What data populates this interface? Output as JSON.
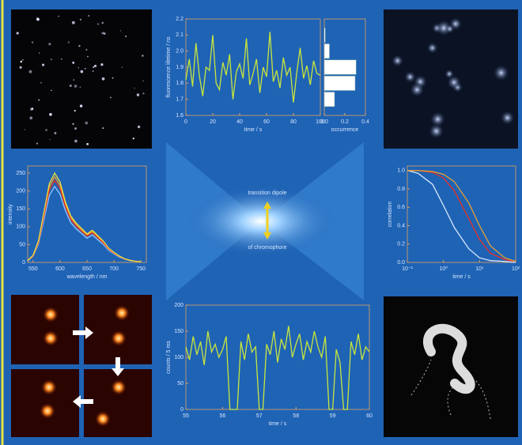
{
  "chart_data": [
    {
      "type": "line",
      "x_label": "time / s",
      "y_label": "fluorescence lifetime / ns",
      "x": [
        0,
        2.5,
        5,
        7.5,
        10,
        12.5,
        15,
        17.5,
        20,
        22.5,
        25,
        27.5,
        30,
        32.5,
        35,
        37.5,
        40,
        42.5,
        45,
        47.5,
        50,
        52.5,
        55,
        57.5,
        60,
        62.5,
        65,
        67.5,
        70,
        72.5,
        75,
        77.5,
        80,
        82.5,
        85,
        87.5,
        90,
        92.5,
        95,
        97.5,
        100
      ],
      "series": [
        {
          "color": "#c8e63c",
          "values": [
            1.82,
            1.95,
            1.78,
            2.05,
            1.85,
            1.72,
            1.9,
            1.88,
            2.1,
            1.8,
            1.76,
            1.93,
            1.85,
            1.98,
            1.7,
            1.87,
            1.92,
            1.83,
            2.08,
            1.79,
            1.86,
            1.95,
            1.74,
            1.9,
            1.84,
            2.12,
            1.81,
            1.88,
            1.77,
            1.96,
            1.85,
            1.9,
            1.68,
            1.87,
            2.02,
            1.83,
            1.91,
            1.79,
            1.94,
            1.86,
            1.85
          ]
        }
      ],
      "xlim": [
        0,
        100
      ],
      "xticks": [
        0,
        20,
        40,
        60,
        80,
        100
      ],
      "ylim": [
        1.6,
        2.2
      ],
      "yticks": [
        1.6,
        1.7,
        1.8,
        1.9,
        {
          "value": 2,
          "label": "2.0"
        },
        2.1,
        2.2
      ]
    },
    {
      "type": "histogram",
      "orientation": "horizontal",
      "x_label": "occurrence",
      "color": "#ffffff",
      "bins": [
        1.65,
        1.75,
        1.85,
        1.95,
        2.05,
        2.15
      ],
      "values": [
        0.1,
        0.3,
        0.31,
        0.05,
        0.01
      ],
      "xlim": [
        0,
        0.4
      ],
      "xticks": [
        {
          "value": 0,
          "label": "0.0"
        },
        0.2,
        0.4
      ],
      "ylim": [
        1.6,
        2.2
      ]
    },
    {
      "type": "line",
      "x_label": "wavelength / nm",
      "y_label": "intensity",
      "x": [
        540,
        550,
        560,
        570,
        580,
        590,
        600,
        610,
        620,
        630,
        640,
        650,
        660,
        670,
        680,
        690,
        700,
        710,
        720,
        730,
        740,
        750
      ],
      "series": [
        {
          "color": "#8fc8ff",
          "values": [
            4,
            17,
            51,
            119,
            187,
            213,
            191,
            145,
            111,
            94,
            81,
            68,
            77,
            64,
            51,
            34,
            24,
            15,
            9,
            5,
            3,
            2
          ]
        },
        {
          "color": "#e8a030",
          "values": [
            5,
            19,
            58,
            134,
            211,
            240,
            216,
            163,
            125,
            106,
            91,
            77,
            86,
            72,
            58,
            38,
            27,
            17,
            10,
            6,
            3,
            2
          ]
        },
        {
          "color": "#e83020",
          "values": [
            5,
            18,
            55,
            129,
            202,
            230,
            207,
            156,
            120,
            101,
            87,
            74,
            83,
            69,
            55,
            37,
            26,
            17,
            9,
            6,
            3,
            2
          ]
        },
        {
          "color": "#e8e040",
          "values": [
            5,
            20,
            60,
            140,
            220,
            250,
            225,
            170,
            130,
            110,
            95,
            80,
            90,
            75,
            60,
            40,
            28,
            18,
            10,
            6,
            3,
            2
          ]
        }
      ],
      "xlim": [
        540,
        760
      ],
      "xticks": [
        550,
        600,
        650,
        700,
        750
      ],
      "ylim": [
        0,
        270
      ],
      "yticks": [
        0,
        50,
        100,
        150,
        200,
        250
      ]
    },
    {
      "type": "line",
      "x_label": "time / s",
      "y_label": "correlation",
      "xscale": "log",
      "x": [
        0.1,
        0.2,
        0.5,
        1,
        2,
        5,
        10,
        20,
        50,
        100
      ],
      "series": [
        {
          "color": "#d8e8ff",
          "values": [
            1,
            0.97,
            0.85,
            0.62,
            0.38,
            0.15,
            0.05,
            0.02,
            0.01,
            0
          ]
        },
        {
          "color": "#e83020",
          "values": [
            1,
            1,
            0.98,
            0.92,
            0.78,
            0.48,
            0.25,
            0.1,
            0.03,
            0.01
          ]
        },
        {
          "color": "#e8a030",
          "values": [
            1,
            1,
            0.99,
            0.96,
            0.88,
            0.65,
            0.4,
            0.18,
            0.05,
            0.01
          ]
        }
      ],
      "xlim": [
        0.1,
        100
      ],
      "xticks": [
        {
          "value": 0.1,
          "label": "10⁻¹"
        },
        {
          "value": 1,
          "label": "10⁰"
        },
        {
          "value": 10,
          "label": "10¹"
        },
        {
          "value": 100,
          "label": "10²"
        }
      ],
      "ylim": [
        0,
        1.05
      ],
      "yticks": [
        {
          "value": 0,
          "label": "0.0"
        },
        0.2,
        0.4,
        0.6,
        0.8,
        {
          "value": 1,
          "label": "1.0"
        }
      ]
    },
    {
      "type": "line",
      "x_label": "time / s",
      "y_label": "counts / 5 ms",
      "x": [
        55,
        55.1,
        55.2,
        55.3,
        55.4,
        55.5,
        55.6,
        55.7,
        55.8,
        55.9,
        56,
        56.1,
        56.2,
        56.3,
        56.4,
        56.5,
        56.6,
        56.7,
        56.8,
        56.9,
        57,
        57.1,
        57.2,
        57.3,
        57.4,
        57.5,
        57.6,
        57.7,
        57.8,
        57.9,
        58,
        58.1,
        58.2,
        58.3,
        58.4,
        58.5,
        58.6,
        58.7,
        58.8,
        58.9,
        59,
        59.1,
        59.2,
        59.3,
        59.4,
        59.5,
        59.6,
        59.7,
        59.8,
        59.9,
        60
      ],
      "series": [
        {
          "color": "#c8e63c",
          "values": [
            120,
            95,
            140,
            105,
            130,
            85,
            150,
            110,
            125,
            100,
            115,
            140,
            0,
            0,
            0,
            130,
            95,
            145,
            110,
            120,
            0,
            0,
            125,
            105,
            150,
            90,
            135,
            115,
            160,
            100,
            125,
            145,
            95,
            130,
            110,
            150,
            120,
            100,
            140,
            0,
            0,
            115,
            90,
            0,
            0,
            130,
            105,
            145,
            95,
            120,
            110
          ]
        }
      ],
      "xlim": [
        55,
        60
      ],
      "xticks": [
        55,
        56,
        57,
        58,
        59,
        60
      ],
      "ylim": [
        0,
        200
      ],
      "yticks": [
        0,
        50,
        100,
        150,
        200
      ]
    }
  ],
  "center_labels": [
    "transition dipole",
    "of chromophore"
  ]
}
